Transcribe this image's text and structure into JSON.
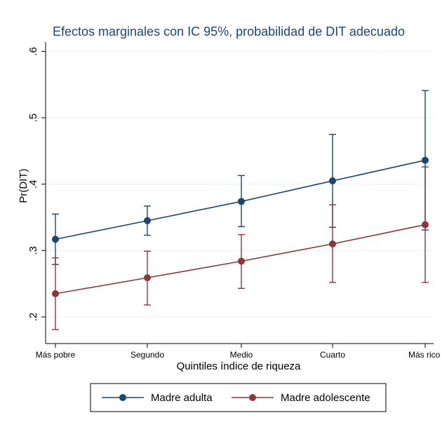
{
  "chart_data": {
    "type": "line",
    "title": "Efectos marginales con IC 95%, probabilidad de DIT adecuado",
    "xlabel": "Quintiles índice de riqueza",
    "ylabel": "Pr(DIT)",
    "categories": [
      "Más pobre",
      "Segundo",
      "Medio",
      "Cuarto",
      "Más rico"
    ],
    "yticks": [
      0.2,
      0.3,
      0.4,
      0.5,
      0.6
    ],
    "ytick_labels": [
      ".2",
      ".3",
      ".4",
      ".5",
      ".6"
    ],
    "ylim": [
      0.18,
      0.63
    ],
    "grid": true,
    "legend_position": "bottom",
    "series": [
      {
        "name": "Madre adulta",
        "color": "#1a476f",
        "values": [
          0.317,
          0.345,
          0.374,
          0.405,
          0.436
        ],
        "ci_low": [
          0.279,
          0.323,
          0.336,
          0.335,
          0.331
        ],
        "ci_high": [
          0.355,
          0.367,
          0.413,
          0.475,
          0.541
        ]
      },
      {
        "name": "Madre adolescente",
        "color": "#90353b",
        "values": [
          0.235,
          0.259,
          0.284,
          0.31,
          0.339
        ],
        "ci_low": [
          0.181,
          0.218,
          0.243,
          0.252,
          0.252
        ],
        "ci_high": [
          0.289,
          0.299,
          0.324,
          0.369,
          0.426
        ]
      }
    ]
  }
}
